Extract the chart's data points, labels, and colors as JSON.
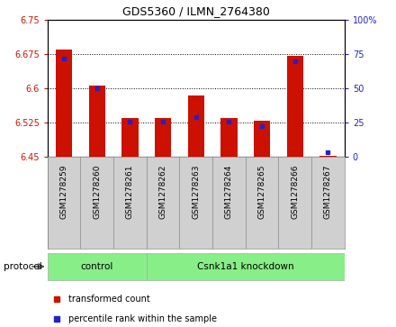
{
  "title": "GDS5360 / ILMN_2764380",
  "samples": [
    "GSM1278259",
    "GSM1278260",
    "GSM1278261",
    "GSM1278262",
    "GSM1278263",
    "GSM1278264",
    "GSM1278265",
    "GSM1278266",
    "GSM1278267"
  ],
  "red_values": [
    6.685,
    6.605,
    6.535,
    6.535,
    6.585,
    6.535,
    6.53,
    6.67,
    6.452
  ],
  "blue_values": [
    6.665,
    6.6,
    6.527,
    6.527,
    6.537,
    6.527,
    6.518,
    6.66,
    6.46
  ],
  "y_min": 6.45,
  "y_max": 6.75,
  "y_ticks": [
    6.45,
    6.525,
    6.6,
    6.675,
    6.75
  ],
  "y2_ticks": [
    0,
    25,
    50,
    75,
    100
  ],
  "bar_color": "#cc1100",
  "marker_color": "#2222cc",
  "bg_color": "#d0d0d0",
  "plot_bg": "#ffffff",
  "control_color": "#88ee88",
  "knockdown_color": "#88ee88",
  "ctrl_count": 3,
  "legend_items": [
    {
      "label": "transformed count",
      "color": "#cc1100"
    },
    {
      "label": "percentile rank within the sample",
      "color": "#2222cc"
    }
  ],
  "protocol_label": "protocol"
}
